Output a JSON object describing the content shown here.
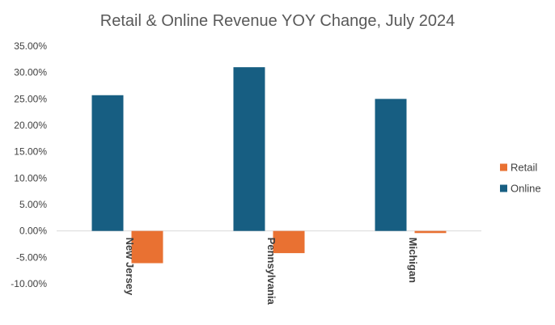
{
  "chart_data": {
    "type": "bar",
    "title": "Retail & Online Revenue YOY Change, July 2024",
    "categories": [
      "New Jersey",
      "Pennsylvania",
      "Michigan"
    ],
    "series": [
      {
        "name": "Online",
        "values": [
          25.7,
          31.0,
          25.0
        ],
        "color": "#175E82"
      },
      {
        "name": "Retail",
        "values": [
          -6.1,
          -4.2,
          -0.4
        ],
        "color": "#E97132"
      }
    ],
    "ylim": [
      -10,
      35
    ],
    "yticks": [
      "35.00%",
      "30.00%",
      "25.00%",
      "20.00%",
      "15.00%",
      "10.00%",
      "5.00%",
      "0.00%",
      "-5.00%",
      "-10.00%"
    ],
    "ytick_values": [
      35,
      30,
      25,
      20,
      15,
      10,
      5,
      0,
      -5,
      -10
    ],
    "legend": [
      {
        "name": "Retail",
        "color": "#E97132"
      },
      {
        "name": "Online",
        "color": "#175E82"
      }
    ],
    "legend_position": "right",
    "grid": false
  }
}
